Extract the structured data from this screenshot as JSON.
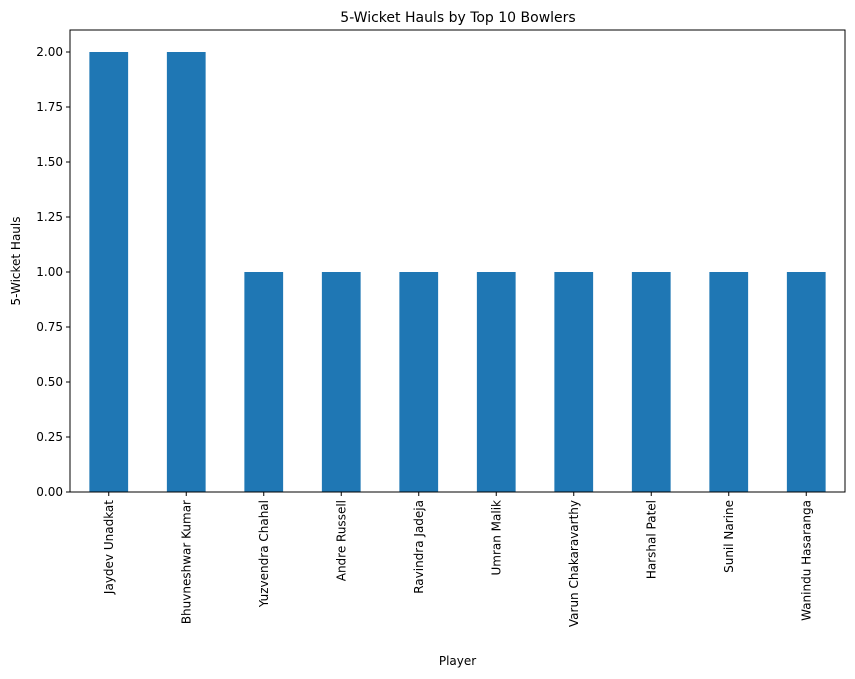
{
  "chart_data": {
    "type": "bar",
    "title": "5-Wicket Hauls by Top 10 Bowlers",
    "xlabel": "Player",
    "ylabel": "5-Wicket Hauls",
    "categories": [
      "Jaydev Unadkat",
      "Bhuvneshwar Kumar",
      "Yuzvendra Chahal",
      "Andre Russell",
      "Ravindra Jadeja",
      "Umran Malik",
      "Varun Chakaravarthy",
      "Harshal Patel",
      "Sunil Narine",
      "Wanindu Hasaranga"
    ],
    "values": [
      2,
      2,
      1,
      1,
      1,
      1,
      1,
      1,
      1,
      1
    ],
    "ylim": [
      0,
      2.1
    ],
    "yticks": [
      "0.00",
      "0.25",
      "0.50",
      "0.75",
      "1.00",
      "1.25",
      "1.50",
      "1.75",
      "2.00"
    ],
    "bar_color": "#1f77b4",
    "grid": false,
    "legend": false
  }
}
